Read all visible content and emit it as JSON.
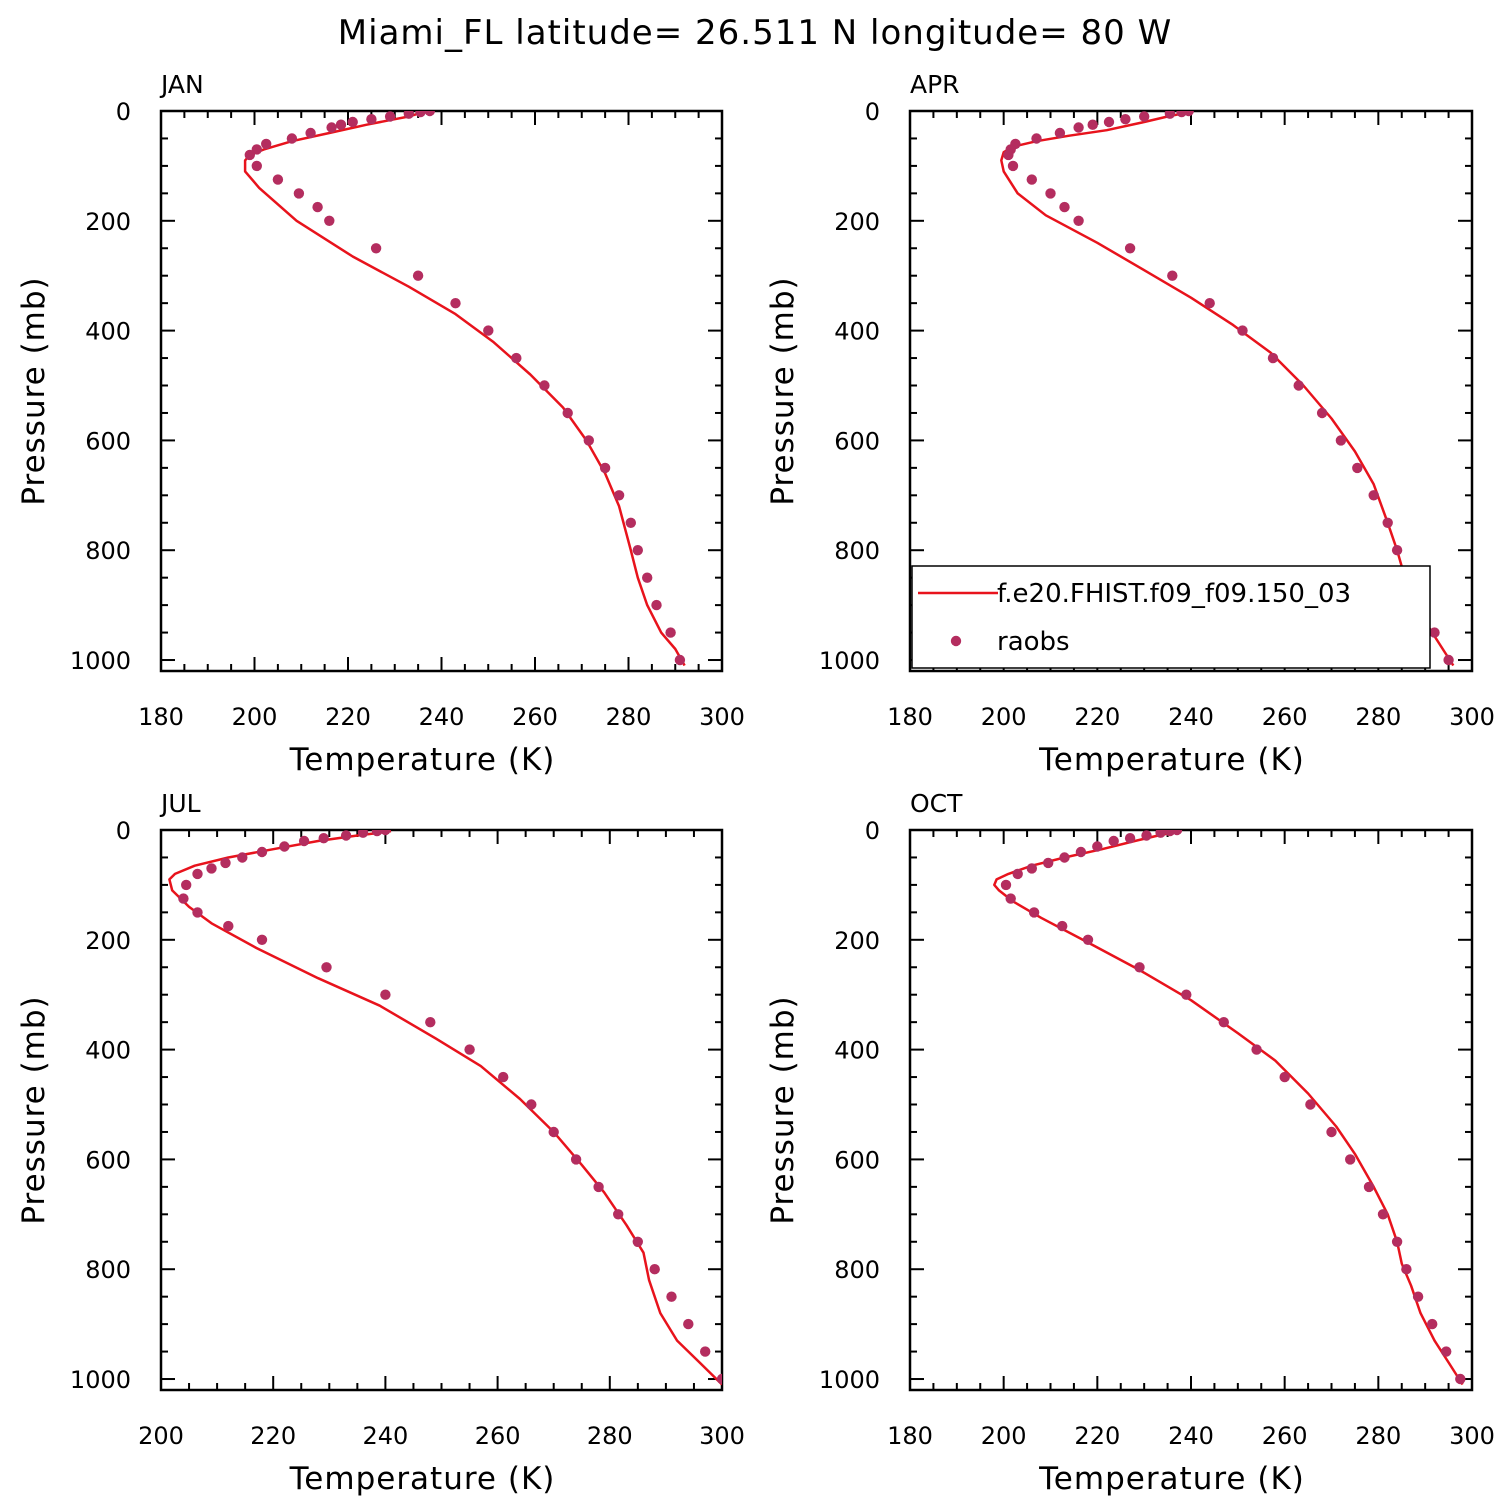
{
  "title": "Miami_FL  latitude= 26.511 N longitude= 80 W",
  "colors": {
    "model_line": "#e8131c",
    "raobs_point": "#b42d5f"
  },
  "legend": {
    "model_label": "f.e20.FHIST.f09_f09.150_03",
    "obs_label": "raobs"
  },
  "chart_data": [
    {
      "type": "line",
      "panel": "JAN",
      "xlabel": "Temperature (K)",
      "ylabel": "Pressure (mb)",
      "xlim": [
        180,
        300
      ],
      "ylim": [
        1020,
        0
      ],
      "xticks": [
        180,
        200,
        220,
        240,
        260,
        280,
        300
      ],
      "yticks": [
        0,
        200,
        400,
        600,
        800,
        1000
      ],
      "series": [
        {
          "name": "f.e20.FHIST.f09_f09.150_03",
          "kind": "line",
          "points": [
            [
              292,
              1010
            ],
            [
              290,
              980
            ],
            [
              287,
              950
            ],
            [
              284,
              900
            ],
            [
              282,
              850
            ],
            [
              280.5,
              800
            ],
            [
              278,
              720
            ],
            [
              275,
              660
            ],
            [
              271,
              600
            ],
            [
              266,
              540
            ],
            [
              259,
              480
            ],
            [
              251,
              420
            ],
            [
              243,
              370
            ],
            [
              233,
              320
            ],
            [
              221,
              265
            ],
            [
              209,
              200
            ],
            [
              201,
              140
            ],
            [
              198,
              110
            ],
            [
              198,
              90
            ],
            [
              199,
              80
            ],
            [
              202,
              70
            ],
            [
              208,
              55
            ],
            [
              216,
              40
            ],
            [
              224,
              25
            ],
            [
              230,
              15
            ],
            [
              233,
              10
            ],
            [
              235,
              5
            ],
            [
              236,
              3
            ]
          ]
        },
        {
          "name": "raobs",
          "kind": "points",
          "points": [
            [
              237.5,
              0
            ],
            [
              235.5,
              2
            ],
            [
              233,
              5
            ],
            [
              229,
              10
            ],
            [
              225,
              15
            ],
            [
              221,
              20
            ],
            [
              218.5,
              25
            ],
            [
              216.5,
              30
            ],
            [
              212,
              40
            ],
            [
              208,
              50
            ],
            [
              202.5,
              60
            ],
            [
              200.5,
              70
            ],
            [
              199,
              80
            ],
            [
              200.5,
              100
            ],
            [
              205,
              125
            ],
            [
              209.5,
              150
            ],
            [
              213.5,
              175
            ],
            [
              216,
              200
            ],
            [
              226,
              250
            ],
            [
              235,
              300
            ],
            [
              243,
              350
            ],
            [
              250,
              400
            ],
            [
              256,
              450
            ],
            [
              262,
              500
            ],
            [
              267,
              550
            ],
            [
              271.5,
              600
            ],
            [
              275,
              650
            ],
            [
              278,
              700
            ],
            [
              280.5,
              750
            ],
            [
              282,
              800
            ],
            [
              284,
              850
            ],
            [
              286,
              900
            ],
            [
              289,
              950
            ],
            [
              291,
              1000
            ]
          ]
        }
      ]
    },
    {
      "type": "line",
      "panel": "APR",
      "xlabel": "Temperature (K)",
      "ylabel": "Pressure (mb)",
      "xlim": [
        180,
        300
      ],
      "ylim": [
        1020,
        0
      ],
      "xticks": [
        180,
        200,
        220,
        240,
        260,
        280,
        300
      ],
      "yticks": [
        0,
        200,
        400,
        600,
        800,
        1000
      ],
      "legend_position": "bottom",
      "series": [
        {
          "name": "f.e20.FHIST.f09_f09.150_03",
          "kind": "line",
          "points": [
            [
              296,
              1010
            ],
            [
              293,
              970
            ],
            [
              290,
              930
            ],
            [
              287,
              880
            ],
            [
              285,
              830
            ],
            [
              284,
              800
            ],
            [
              282,
              750
            ],
            [
              279,
              680
            ],
            [
              275,
              620
            ],
            [
              270,
              560
            ],
            [
              264,
              500
            ],
            [
              257,
              440
            ],
            [
              249,
              390
            ],
            [
              240,
              340
            ],
            [
              230,
              290
            ],
            [
              220,
              240
            ],
            [
              209,
              190
            ],
            [
              203,
              150
            ],
            [
              200,
              110
            ],
            [
              199.5,
              90
            ],
            [
              200,
              75
            ],
            [
              202,
              65
            ],
            [
              207,
              55
            ],
            [
              214,
              45
            ],
            [
              222,
              35
            ],
            [
              230,
              20
            ],
            [
              235,
              10
            ],
            [
              238,
              5
            ],
            [
              240,
              2
            ]
          ]
        },
        {
          "name": "raobs",
          "kind": "points",
          "points": [
            [
              239.5,
              0
            ],
            [
              238,
              2
            ],
            [
              235.5,
              5
            ],
            [
              230,
              10
            ],
            [
              226,
              15
            ],
            [
              222.5,
              20
            ],
            [
              219,
              25
            ],
            [
              216,
              30
            ],
            [
              212,
              40
            ],
            [
              207,
              50
            ],
            [
              202.5,
              60
            ],
            [
              201.5,
              70
            ],
            [
              201,
              80
            ],
            [
              202,
              100
            ],
            [
              206,
              125
            ],
            [
              210,
              150
            ],
            [
              213,
              175
            ],
            [
              216,
              200
            ],
            [
              227,
              250
            ],
            [
              236,
              300
            ],
            [
              244,
              350
            ],
            [
              251,
              400
            ],
            [
              257.5,
              450
            ],
            [
              263,
              500
            ],
            [
              268,
              550
            ],
            [
              272,
              600
            ],
            [
              275.5,
              650
            ],
            [
              279,
              700
            ],
            [
              282,
              750
            ],
            [
              284,
              800
            ],
            [
              286,
              850
            ],
            [
              289,
              900
            ],
            [
              292,
              950
            ],
            [
              295,
              1000
            ]
          ]
        }
      ]
    },
    {
      "type": "line",
      "panel": "JUL",
      "xlabel": "Temperature (K)",
      "ylabel": "Pressure (mb)",
      "xlim": [
        200,
        300
      ],
      "ylim": [
        1020,
        0
      ],
      "xticks": [
        200,
        220,
        240,
        260,
        280,
        300
      ],
      "yticks": [
        0,
        200,
        400,
        600,
        800,
        1000
      ],
      "series": [
        {
          "name": "f.e20.FHIST.f09_f09.150_03",
          "kind": "line",
          "points": [
            [
              300,
              1010
            ],
            [
              296,
              970
            ],
            [
              292,
              930
            ],
            [
              289,
              880
            ],
            [
              287,
              820
            ],
            [
              286,
              770
            ],
            [
              283,
              720
            ],
            [
              279,
              660
            ],
            [
              275,
              610
            ],
            [
              270,
              550
            ],
            [
              264,
              490
            ],
            [
              257,
              430
            ],
            [
              249,
              380
            ],
            [
              239,
              320
            ],
            [
              228,
              270
            ],
            [
              217,
              215
            ],
            [
              209,
              170
            ],
            [
              205,
              140
            ],
            [
              202,
              110
            ],
            [
              201.5,
              90
            ],
            [
              202.5,
              80
            ],
            [
              206,
              65
            ],
            [
              212,
              50
            ],
            [
              220,
              35
            ],
            [
              228,
              20
            ],
            [
              235,
              10
            ],
            [
              239,
              5
            ],
            [
              241,
              2
            ]
          ]
        },
        {
          "name": "raobs",
          "kind": "points",
          "points": [
            [
              240,
              0
            ],
            [
              238.5,
              2
            ],
            [
              236,
              5
            ],
            [
              233,
              10
            ],
            [
              229,
              15
            ],
            [
              225.5,
              20
            ],
            [
              222,
              30
            ],
            [
              218,
              40
            ],
            [
              214.5,
              50
            ],
            [
              211.5,
              60
            ],
            [
              209,
              70
            ],
            [
              206.5,
              80
            ],
            [
              204.5,
              100
            ],
            [
              204,
              125
            ],
            [
              206.5,
              150
            ],
            [
              212,
              175
            ],
            [
              218,
              200
            ],
            [
              229.5,
              250
            ],
            [
              240,
              300
            ],
            [
              248,
              350
            ],
            [
              255,
              400
            ],
            [
              261,
              450
            ],
            [
              266,
              500
            ],
            [
              270,
              550
            ],
            [
              274,
              600
            ],
            [
              278,
              650
            ],
            [
              281.5,
              700
            ],
            [
              285,
              750
            ],
            [
              288,
              800
            ],
            [
              291,
              850
            ],
            [
              294,
              900
            ],
            [
              297,
              950
            ],
            [
              300,
              1000
            ]
          ]
        }
      ]
    },
    {
      "type": "line",
      "panel": "OCT",
      "xlabel": "Temperature (K)",
      "ylabel": "Pressure (mb)",
      "xlim": [
        180,
        300
      ],
      "ylim": [
        1020,
        0
      ],
      "xticks": [
        180,
        200,
        220,
        240,
        260,
        280,
        300
      ],
      "yticks": [
        0,
        200,
        400,
        600,
        800,
        1000
      ],
      "series": [
        {
          "name": "f.e20.FHIST.f09_f09.150_03",
          "kind": "line",
          "points": [
            [
              298,
              1010
            ],
            [
              295,
              970
            ],
            [
              292,
              930
            ],
            [
              289,
              880
            ],
            [
              287,
              830
            ],
            [
              285,
              790
            ],
            [
              284,
              750
            ],
            [
              282,
              700
            ],
            [
              279,
              650
            ],
            [
              275,
              590
            ],
            [
              271,
              540
            ],
            [
              265,
              480
            ],
            [
              258,
              420
            ],
            [
              250,
              370
            ],
            [
              240,
              310
            ],
            [
              229,
              255
            ],
            [
              218,
              205
            ],
            [
              208,
              160
            ],
            [
              202,
              130
            ],
            [
              199,
              110
            ],
            [
              198,
              100
            ],
            [
              198.5,
              90
            ],
            [
              201,
              80
            ],
            [
              206,
              65
            ],
            [
              213,
              50
            ],
            [
              221,
              35
            ],
            [
              228,
              20
            ],
            [
              233,
              10
            ],
            [
              236,
              5
            ],
            [
              238,
              2
            ]
          ]
        },
        {
          "name": "raobs",
          "kind": "points",
          "points": [
            [
              237,
              0
            ],
            [
              235.5,
              2
            ],
            [
              233.5,
              5
            ],
            [
              230.5,
              10
            ],
            [
              227,
              15
            ],
            [
              223.5,
              20
            ],
            [
              220,
              30
            ],
            [
              216.5,
              40
            ],
            [
              213,
              50
            ],
            [
              209.5,
              60
            ],
            [
              206,
              70
            ],
            [
              203,
              80
            ],
            [
              200.5,
              100
            ],
            [
              201.5,
              125
            ],
            [
              206.5,
              150
            ],
            [
              212.5,
              175
            ],
            [
              218,
              200
            ],
            [
              229,
              250
            ],
            [
              239,
              300
            ],
            [
              247,
              350
            ],
            [
              254,
              400
            ],
            [
              260,
              450
            ],
            [
              265.5,
              500
            ],
            [
              270,
              550
            ],
            [
              274,
              600
            ],
            [
              278,
              650
            ],
            [
              281,
              700
            ],
            [
              284,
              750
            ],
            [
              286,
              800
            ],
            [
              288.5,
              850
            ],
            [
              291.5,
              900
            ],
            [
              294.5,
              950
            ],
            [
              297.5,
              1000
            ]
          ]
        }
      ]
    }
  ]
}
